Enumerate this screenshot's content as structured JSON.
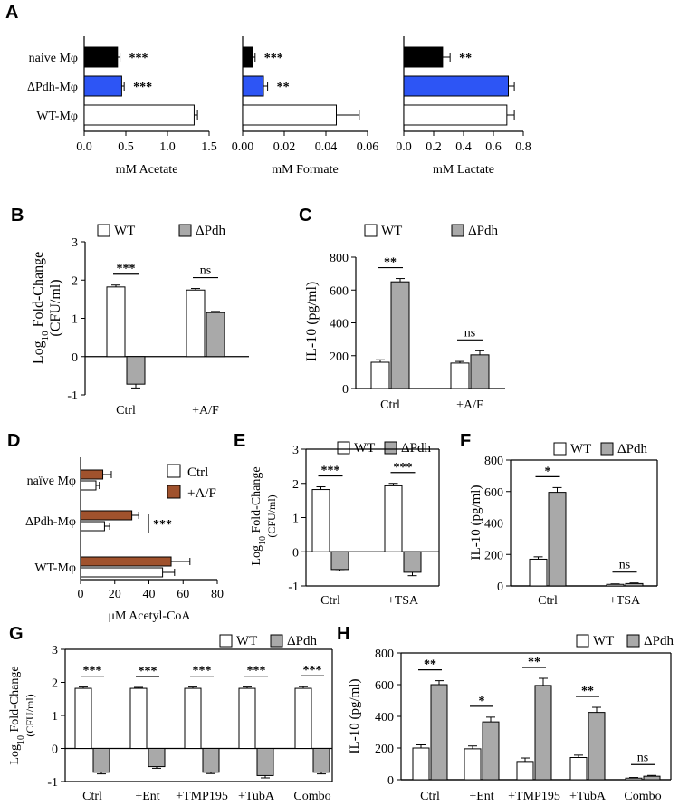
{
  "chart_data": [
    {
      "panel": "A",
      "type": "bar",
      "orientation": "horizontal",
      "categories": [
        "naive Mφ",
        "ΔPdh-Mφ",
        "WT-Mφ"
      ],
      "values": [
        0.4,
        0.45,
        1.32
      ],
      "errors": [
        0.03,
        0.03,
        0.04
      ],
      "colors": [
        "#000000",
        "#2d55f5",
        "#ffffff"
      ],
      "annotations": [
        "***",
        "***",
        ""
      ],
      "xlabel": "mM Acetate",
      "xlim": [
        0,
        1.5
      ],
      "xticks": [
        0.0,
        0.5,
        1.0,
        1.5
      ],
      "xtick_labels": [
        "0.0",
        "0.5",
        "1.0",
        "1.5"
      ]
    },
    {
      "panel": "A2",
      "type": "bar",
      "orientation": "horizontal",
      "categories": [
        "naive Mφ",
        "ΔPdh-Mφ",
        "WT-Mφ"
      ],
      "values": [
        0.005,
        0.01,
        0.045
      ],
      "errors": [
        0.001,
        0.002,
        0.011
      ],
      "colors": [
        "#000000",
        "#2d55f5",
        "#ffffff"
      ],
      "annotations": [
        "***",
        "**",
        ""
      ],
      "xlabel": "mM Formate",
      "xlim": [
        0,
        0.06
      ],
      "xticks": [
        0.0,
        0.02,
        0.04,
        0.06
      ],
      "xtick_labels": [
        "0.00",
        "0.02",
        "0.04",
        "0.06"
      ]
    },
    {
      "panel": "A3",
      "type": "bar",
      "orientation": "horizontal",
      "categories": [
        "naive Mφ",
        "ΔPdh-Mφ",
        "WT-Mφ"
      ],
      "values": [
        0.26,
        0.7,
        0.69
      ],
      "errors": [
        0.05,
        0.04,
        0.05
      ],
      "colors": [
        "#000000",
        "#2d55f5",
        "#ffffff"
      ],
      "annotations": [
        "**",
        "",
        ""
      ],
      "xlabel": "mM Lactate",
      "xlim": [
        0,
        0.8
      ],
      "xticks": [
        0.0,
        0.2,
        0.4,
        0.6,
        0.8
      ],
      "xtick_labels": [
        "0.0",
        "0.2",
        "0.4",
        "0.6",
        "0.8"
      ]
    },
    {
      "panel": "B",
      "type": "bar",
      "categories": [
        "Ctrl",
        "+A/F"
      ],
      "series": [
        {
          "name": "WT",
          "values": [
            1.82,
            1.74
          ],
          "errors": [
            0.05,
            0.04
          ],
          "color": "#ffffff"
        },
        {
          "name": "ΔPdh",
          "values": [
            -0.72,
            1.15
          ],
          "errors": [
            0.1,
            0.03
          ],
          "color": "#a9a9a9"
        }
      ],
      "ylabel": "Log10 Fold-Change (CFU/ml)",
      "ylim": [
        -1,
        3
      ],
      "yticks": [
        -1,
        0,
        1,
        2,
        3
      ],
      "ytick_labels": [
        "-1",
        "0",
        "1",
        "2",
        "3"
      ],
      "sig": [
        {
          "text": "***"
        },
        {
          "text": "ns"
        }
      ]
    },
    {
      "panel": "C",
      "type": "bar",
      "categories": [
        "Ctrl",
        "+A/F"
      ],
      "series": [
        {
          "name": "WT",
          "values": [
            160,
            155
          ],
          "errors": [
            15,
            10
          ],
          "color": "#ffffff"
        },
        {
          "name": "ΔPdh",
          "values": [
            650,
            205
          ],
          "errors": [
            20,
            25
          ],
          "color": "#a9a9a9"
        }
      ],
      "ylabel": "IL-10 (pg/ml)",
      "ylim": [
        0,
        800
      ],
      "yticks": [
        0,
        200,
        400,
        600,
        800
      ],
      "ytick_labels": [
        "0",
        "200",
        "400",
        "600",
        "800"
      ],
      "sig": [
        {
          "text": "**"
        },
        {
          "text": "ns"
        }
      ]
    },
    {
      "panel": "D",
      "type": "bar",
      "orientation": "horizontal",
      "categories": [
        "naïve Mφ",
        "ΔPdh-Mφ",
        "WT-Mφ"
      ],
      "series": [
        {
          "name": "+A/F",
          "values": [
            13,
            30,
            53
          ],
          "errors": [
            5,
            4,
            11
          ],
          "color": "#a0522d"
        },
        {
          "name": "Ctrl",
          "values": [
            9,
            14,
            48
          ],
          "errors": [
            2,
            3,
            7
          ],
          "color": "#ffffff"
        }
      ],
      "legend": [
        "Ctrl",
        "+A/F"
      ],
      "sig_text": "***",
      "xlabel": "μM Acetyl-CoA",
      "xlim": [
        0,
        80
      ],
      "xticks": [
        0,
        20,
        40,
        60,
        80
      ],
      "xtick_labels": [
        "0",
        "20",
        "40",
        "60",
        "80"
      ]
    },
    {
      "panel": "E",
      "type": "bar",
      "categories": [
        "Ctrl",
        "+TSA"
      ],
      "series": [
        {
          "name": "WT",
          "values": [
            1.82,
            1.93
          ],
          "errors": [
            0.08,
            0.07
          ],
          "color": "#ffffff"
        },
        {
          "name": "ΔPdh",
          "values": [
            -0.52,
            -0.6
          ],
          "errors": [
            0.04,
            0.1
          ],
          "color": "#a9a9a9"
        }
      ],
      "ylabel": "Log10 Fold-Change (CFU/ml)",
      "ylim": [
        -1,
        3
      ],
      "yticks": [
        -1,
        0,
        1,
        2,
        3
      ],
      "ytick_labels": [
        "-1",
        "0",
        "1",
        "2",
        "3"
      ],
      "sig": [
        {
          "text": "***"
        },
        {
          "text": "***"
        }
      ]
    },
    {
      "panel": "F",
      "type": "bar",
      "categories": [
        "Ctrl",
        "+TSA"
      ],
      "series": [
        {
          "name": "WT",
          "values": [
            170,
            10
          ],
          "errors": [
            15,
            3
          ],
          "color": "#ffffff"
        },
        {
          "name": "ΔPdh",
          "values": [
            595,
            15
          ],
          "errors": [
            30,
            4
          ],
          "color": "#a9a9a9"
        }
      ],
      "ylabel": "IL-10 (pg/ml)",
      "ylim": [
        0,
        800
      ],
      "yticks": [
        0,
        200,
        400,
        600,
        800
      ],
      "ytick_labels": [
        "0",
        "200",
        "400",
        "600",
        "800"
      ],
      "sig": [
        {
          "text": "*"
        },
        {
          "text": "ns"
        }
      ]
    },
    {
      "panel": "G",
      "type": "bar",
      "categories": [
        "Ctrl",
        "+Ent",
        "+TMP195",
        "+TubA",
        "Combo"
      ],
      "series": [
        {
          "name": "WT",
          "values": [
            1.82,
            1.82,
            1.82,
            1.82,
            1.82
          ],
          "errors": [
            0.04,
            0.03,
            0.04,
            0.04,
            0.05
          ],
          "color": "#ffffff"
        },
        {
          "name": "ΔPdh",
          "values": [
            -0.72,
            -0.55,
            -0.72,
            -0.82,
            -0.72
          ],
          "errors": [
            0.05,
            0.05,
            0.04,
            0.07,
            0.05
          ],
          "color": "#a9a9a9"
        }
      ],
      "ylabel": "Log10 Fold-Change (CFU/ml)",
      "ylim": [
        -1,
        3
      ],
      "yticks": [
        -1,
        0,
        1,
        2,
        3
      ],
      "ytick_labels": [
        "-1",
        "0",
        "1",
        "2",
        "3"
      ],
      "sig": [
        {
          "text": "***"
        },
        {
          "text": "***"
        },
        {
          "text": "***"
        },
        {
          "text": "***"
        },
        {
          "text": "***"
        }
      ]
    },
    {
      "panel": "H",
      "type": "bar",
      "categories": [
        "Ctrl",
        "+Ent",
        "+TMP195",
        "+TubA",
        "Combo"
      ],
      "series": [
        {
          "name": "WT",
          "values": [
            200,
            195,
            115,
            140,
            10
          ],
          "errors": [
            20,
            18,
            22,
            15,
            4
          ],
          "color": "#ffffff"
        },
        {
          "name": "ΔPdh",
          "values": [
            600,
            365,
            595,
            425,
            22
          ],
          "errors": [
            25,
            30,
            45,
            32,
            5
          ],
          "color": "#a9a9a9"
        }
      ],
      "ylabel": "IL-10 (pg/ml)",
      "ylim": [
        0,
        800
      ],
      "yticks": [
        0,
        200,
        400,
        600,
        800
      ],
      "ytick_labels": [
        "0",
        "200",
        "400",
        "600",
        "800"
      ],
      "sig": [
        {
          "text": "**"
        },
        {
          "text": "*"
        },
        {
          "text": "**"
        },
        {
          "text": "**"
        },
        {
          "text": "ns"
        }
      ]
    }
  ],
  "labels": {
    "panels": [
      "A",
      "B",
      "C",
      "D",
      "E",
      "F",
      "G",
      "H"
    ],
    "legend_wt": "WT",
    "legend_pdh": "ΔPdh",
    "log_prefix": "Log",
    "log_sub": "10",
    "log_suffix": " Fold-Change",
    "cfu": "(CFU/ml)",
    "il10": "IL-10 (pg/ml)"
  }
}
